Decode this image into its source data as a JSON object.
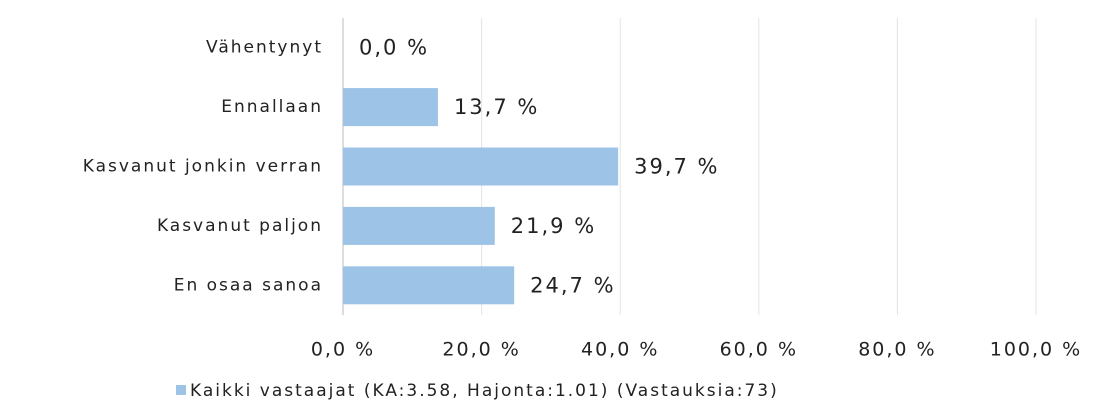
{
  "chart_data": {
    "type": "bar",
    "orientation": "horizontal",
    "categories": [
      "Vähentynyt",
      "Ennallaan",
      "Kasvanut jonkin verran",
      "Kasvanut paljon",
      "En osaa sanoa"
    ],
    "series": [
      {
        "name": "Kaikki vastaajat (KA:3.58, Hajonta:1.01) (Vastauksia:73)",
        "color": "#9dc3e6",
        "values": [
          0,
          13.7,
          39.7,
          21.9,
          24.7
        ],
        "value_labels": [
          "0,0 %",
          "13,7 %",
          "39,7 %",
          "21,9 %",
          "24,7 %"
        ]
      }
    ],
    "xlim": [
      0,
      100
    ],
    "xticks": [
      {
        "value": 0,
        "label": "0,0 %"
      },
      {
        "value": 20,
        "label": "20,0 %"
      },
      {
        "value": 40,
        "label": "40,0 %"
      },
      {
        "value": 60,
        "label": "60,0 %"
      },
      {
        "value": 80,
        "label": "80,0 %"
      },
      {
        "value": 100,
        "label": "100,0 %"
      }
    ],
    "grid": true,
    "legend": "bottom-left"
  }
}
